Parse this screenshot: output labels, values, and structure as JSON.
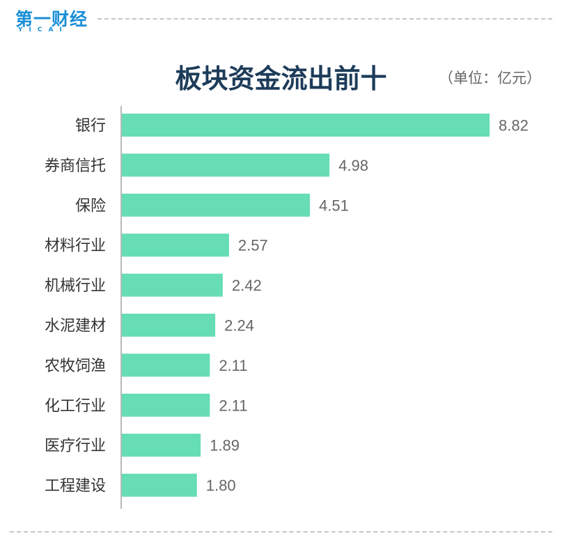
{
  "brand": {
    "name_cn": "第一财经",
    "name_en": "YICAI",
    "color": "#1a8fd6"
  },
  "chart_data": {
    "type": "bar",
    "orientation": "horizontal",
    "title": "板块资金流出前十",
    "unit": "（单位：亿元）",
    "categories": [
      "银行",
      "券商信托",
      "保险",
      "材料行业",
      "机械行业",
      "水泥建材",
      "农牧饲渔",
      "化工行业",
      "医疗行业",
      "工程建设"
    ],
    "values": [
      8.82,
      4.98,
      4.51,
      2.57,
      2.42,
      2.24,
      2.11,
      2.11,
      1.89,
      1.8
    ],
    "value_labels": [
      "8.82",
      "4.98",
      "4.51",
      "2.57",
      "2.42",
      "2.24",
      "2.11",
      "2.11",
      "1.89",
      "1.80"
    ],
    "xlim": [
      0,
      8.82
    ],
    "grid": false,
    "legend": "none",
    "bar_color": "#66ddb4",
    "axis_color": "#a0a0a0"
  }
}
